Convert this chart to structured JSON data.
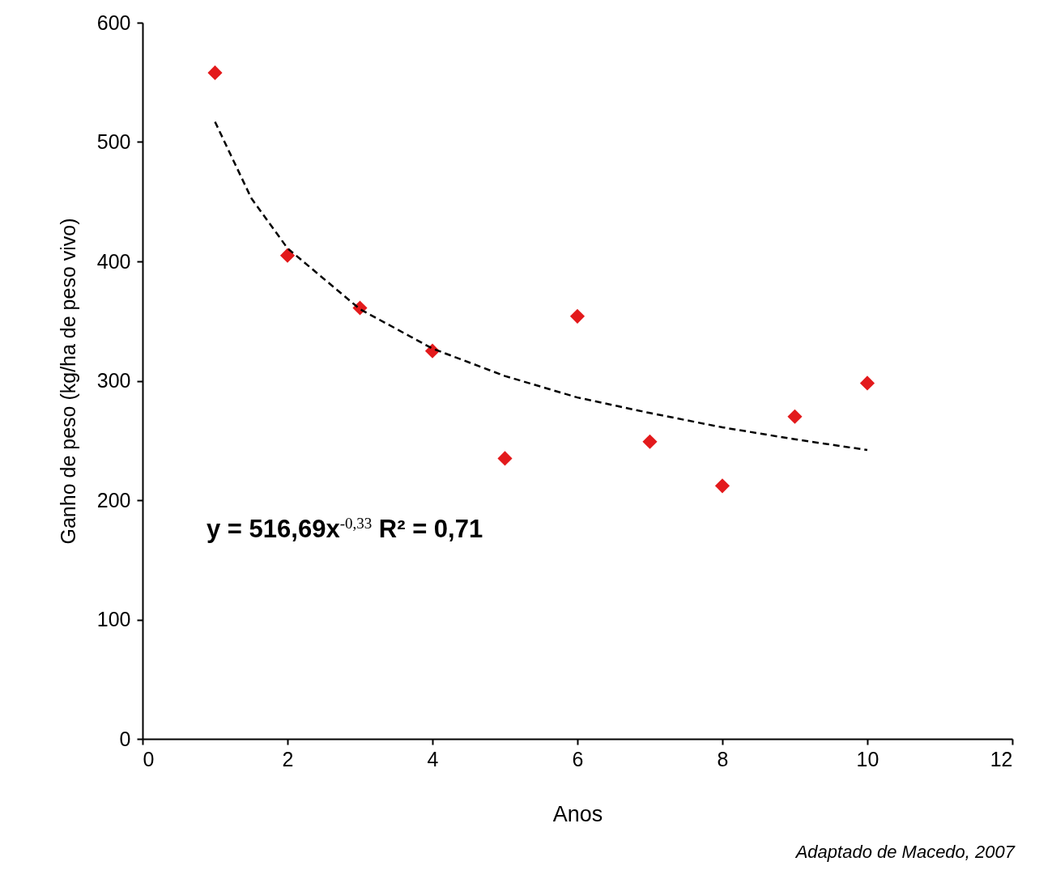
{
  "chart_data": {
    "type": "scatter",
    "xlabel": "Anos",
    "ylabel": "Ganho de peso (kg/ha de peso vivo)",
    "xlim": [
      0,
      12
    ],
    "xticks": [
      0,
      2,
      4,
      6,
      8,
      10,
      12
    ],
    "ylim": [
      0,
      600
    ],
    "yticks": [
      0,
      100,
      200,
      300,
      400,
      500,
      600
    ],
    "grid": false,
    "series": [
      {
        "type": "scatter",
        "color": "#e31a1c",
        "marker": "diamond",
        "x": [
          1,
          2,
          3,
          4,
          5,
          6,
          7,
          8,
          9,
          10
        ],
        "values": [
          558,
          405,
          361,
          325,
          235,
          354,
          249,
          212,
          270,
          298
        ]
      },
      {
        "type": "line",
        "color": "#000000",
        "line_style": "dashed",
        "marker": "none",
        "x": [
          1,
          1.5,
          2,
          3,
          4,
          5,
          6,
          7,
          8,
          9,
          10
        ],
        "values": [
          517,
          453,
          411,
          360,
          327,
          304,
          286,
          273,
          261,
          251,
          242
        ]
      }
    ],
    "annotations": [
      "y = 516,69x$^{-0,33}$  R² = 0,71",
      "Adaptado de Macedo, 2007"
    ]
  }
}
